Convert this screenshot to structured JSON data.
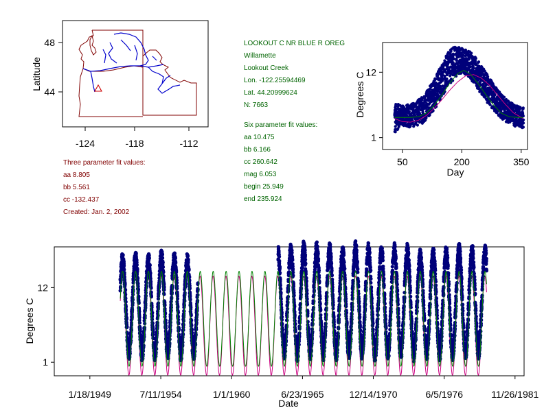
{
  "colors": {
    "map_border": "#800000",
    "river": "#0000cc",
    "site_marker": "#cc0000",
    "observations": "#00007a",
    "fit_six": "#008000",
    "fit_three": "#cc0080",
    "text_green": "#006400",
    "text_red": "#800000"
  },
  "map": {
    "ylabel": "Latitude",
    "y_ticks": [
      "48",
      "44"
    ],
    "x_ticks": [
      "-124",
      "-118",
      "-112"
    ],
    "site_marker_icon": "triangle-icon"
  },
  "station_info": {
    "lines": [
      "LOOKOUT C NR BLUE R OREG",
      "Willamette",
      "Lookout Creek",
      "Lon. -122.25594469",
      "Lat. 44.20999624",
      "N: 7663"
    ]
  },
  "six_param_fit": {
    "lines": [
      "Six parameter fit values:",
      "aa 10.475",
      "bb 6.166",
      "cc 260.642",
      "mag 6.053",
      "begin 25.949",
      "end 235.924"
    ]
  },
  "three_param_fit": {
    "lines": [
      "Three parameter fit values:",
      "aa 8.805",
      "bb 5.561",
      "cc -132.437",
      "Created:   Jan. 2, 2002"
    ]
  },
  "chart_data": [
    {
      "type": "scatter",
      "xlabel": "Day",
      "ylabel": "Degrees C",
      "x_ticks": [
        "50",
        "200",
        "350"
      ],
      "y_ticks": [
        "1",
        "12"
      ],
      "xlim": [
        0,
        366
      ],
      "ylim": [
        -1,
        17
      ],
      "observation_cloud": {
        "x": [
          30,
          40,
          50,
          60,
          70,
          80,
          90,
          100,
          110,
          120,
          130,
          140,
          150,
          160,
          170,
          180,
          190,
          200,
          210,
          220,
          230,
          240,
          250,
          260,
          270,
          280,
          290,
          300,
          310,
          320,
          330,
          340,
          350,
          355
        ],
        "y_low": [
          1.0,
          2.8,
          3.0,
          2.8,
          2.7,
          2.9,
          3.1,
          3.4,
          4.0,
          4.8,
          5.7,
          6.7,
          7.8,
          9.0,
          10.0,
          10.8,
          11.4,
          11.8,
          11.6,
          11.0,
          10.2,
          9.2,
          8.2,
          7.2,
          6.3,
          5.5,
          4.8,
          4.2,
          3.7,
          3.3,
          3.0,
          2.8,
          2.6,
          2.5
        ],
        "y_high": [
          6.8,
          6.6,
          6.4,
          6.5,
          6.7,
          7.0,
          7.4,
          8.0,
          8.8,
          9.8,
          11.0,
          12.3,
          13.6,
          14.8,
          15.7,
          16.3,
          16.4,
          16.1,
          15.8,
          15.5,
          14.9,
          14.0,
          13.1,
          12.1,
          11.0,
          10.0,
          9.1,
          8.3,
          7.6,
          7.1,
          6.7,
          6.4,
          6.2,
          6.0
        ]
      },
      "fit_six": {
        "x": [
          30,
          50,
          70,
          90,
          110,
          130,
          150,
          170,
          190,
          205,
          220,
          240,
          260,
          280,
          300,
          320,
          340,
          355
        ],
        "y": [
          4.4,
          4.4,
          4.4,
          4.5,
          5.1,
          6.4,
          8.2,
          10.2,
          11.8,
          12.3,
          11.8,
          10.2,
          8.3,
          6.5,
          5.1,
          4.5,
          4.4,
          4.4
        ]
      },
      "fit_three": {
        "x": [
          30,
          50,
          70,
          90,
          110,
          130,
          150,
          170,
          190,
          210,
          230,
          250,
          270,
          290,
          310,
          330,
          355
        ],
        "y": [
          4.2,
          3.7,
          3.6,
          3.9,
          4.7,
          5.9,
          7.4,
          9.0,
          10.4,
          11.4,
          11.6,
          11.0,
          9.8,
          8.2,
          6.6,
          5.2,
          4.2
        ]
      }
    },
    {
      "type": "line",
      "xlabel": "Date",
      "ylabel": "Degrees C",
      "x_ticks": [
        "1/18/1949",
        "7/11/1954",
        "1/1/1960",
        "6/23/1965",
        "12/14/1970",
        "6/5/1976",
        "11/26/1981"
      ],
      "x_tick_years": [
        1949.05,
        1954.53,
        1960.0,
        1965.48,
        1970.95,
        1976.43,
        1981.9
      ],
      "y_ticks": [
        "1",
        "12"
      ],
      "xlim": [
        1946.3,
        1982.6
      ],
      "ylim": [
        -1,
        18
      ],
      "observation_years": [
        {
          "start": 1951.4,
          "end": 1957.4
        },
        {
          "start": 1963.6,
          "end": 1979.7
        }
      ],
      "peaks": [
        16.1,
        16.3,
        16.2,
        16.6,
        16.4,
        15.9,
        16.0,
        17.0,
        17.5,
        17.6,
        17.5,
        17.8,
        17.2,
        17.4,
        17.9,
        17.7,
        17.5,
        17.1,
        17.8,
        17.6,
        17.3,
        17.5,
        17.4,
        16.6,
        16.9,
        17.1,
        17.4,
        17.4,
        17.2,
        17.0,
        16.8
      ],
      "troughs": [
        2.2,
        2.5,
        2.2,
        2.3,
        2.5,
        2.2,
        2.4,
        2.2,
        2.3,
        2.4,
        2.5,
        2.3,
        2.2,
        2.6,
        2.2,
        2.4,
        2.3,
        2.2,
        2.5,
        2.4,
        2.2,
        2.3,
        2.5,
        2.2,
        2.4,
        2.3,
        2.2,
        2.5,
        2.4,
        2.3,
        2.2
      ]
    }
  ]
}
